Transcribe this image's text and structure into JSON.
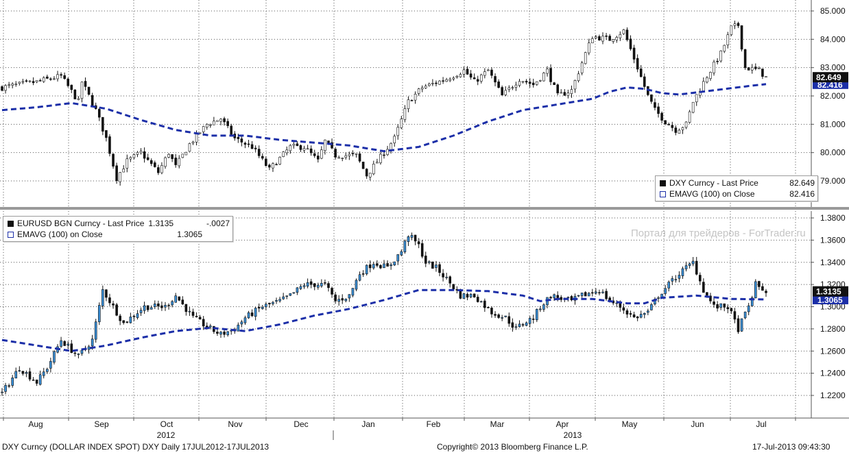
{
  "watermark": "Портал для трейдеров - ForTrader.ru",
  "footer": {
    "left": "DXY Curncy (DOLLAR INDEX SPOT) DXY  Daily 17JUL2012-17JUL2013",
    "center": "Copyright© 2013 Bloomberg Finance L.P.",
    "right": "17-Jul-2013 09:43:30"
  },
  "x_axis": {
    "months": [
      "Aug",
      "Sep",
      "Oct",
      "Nov",
      "Dec",
      "Jan",
      "Feb",
      "Mar",
      "Apr",
      "May",
      "Jun",
      "Jul"
    ],
    "years": [
      "2012",
      "2013"
    ]
  },
  "colors": {
    "candle_up": "#3a8fd6",
    "candle_down": "#111111",
    "ema": "#1c2fa8",
    "grid": "#555555",
    "divider": "#999999"
  },
  "chart_data": [
    {
      "type": "candlestick+line",
      "instrument": "DXY Curncy",
      "legend": [
        {
          "label": "DXY Curncy - Last Price",
          "value": "82.649",
          "marker": "square-black"
        },
        {
          "label": "EMAVG (100) on Close",
          "value": "82.416",
          "marker": "square-outline"
        }
      ],
      "last_price_tag": "82.649",
      "ema_tag": "82.416",
      "y_ticks": [
        "85.000",
        "84.000",
        "83.000",
        "82.000",
        "81.000",
        "80.000",
        "79.000"
      ],
      "ylim": [
        78.5,
        85.25
      ],
      "close_path": [
        [
          0,
          82.3
        ],
        [
          10,
          82.5
        ],
        [
          17,
          82.7
        ],
        [
          22,
          81.8
        ],
        [
          23,
          82.5
        ],
        [
          27,
          81.5
        ],
        [
          30,
          80.5
        ],
        [
          33,
          79.1
        ],
        [
          36,
          79.7
        ],
        [
          40,
          80.0
        ],
        [
          45,
          79.3
        ],
        [
          48,
          80.0
        ],
        [
          50,
          79.5
        ],
        [
          54,
          80.3
        ],
        [
          59,
          81.0
        ],
        [
          63,
          81.2
        ],
        [
          67,
          80.5
        ],
        [
          72,
          80.2
        ],
        [
          77,
          79.4
        ],
        [
          83,
          80.2
        ],
        [
          87,
          80.2
        ],
        [
          91,
          79.7
        ],
        [
          93,
          80.4
        ],
        [
          96,
          79.9
        ],
        [
          102,
          79.9
        ],
        [
          105,
          79.2
        ],
        [
          110,
          80.0
        ],
        [
          113,
          80.5
        ],
        [
          117,
          81.8
        ],
        [
          121,
          82.3
        ],
        [
          128,
          82.6
        ],
        [
          133,
          82.9
        ],
        [
          136,
          82.5
        ],
        [
          140,
          82.9
        ],
        [
          144,
          82.0
        ],
        [
          149,
          82.6
        ],
        [
          153,
          82.4
        ],
        [
          157,
          82.9
        ],
        [
          160,
          82.0
        ],
        [
          164,
          82.2
        ],
        [
          168,
          83.5
        ],
        [
          170,
          84.1
        ],
        [
          175,
          84.0
        ],
        [
          179,
          84.3
        ],
        [
          183,
          83.0
        ],
        [
          186,
          82.0
        ],
        [
          188,
          81.5
        ],
        [
          191,
          81.1
        ],
        [
          194,
          80.8
        ],
        [
          197,
          81.0
        ],
        [
          199,
          81.8
        ],
        [
          203,
          82.7
        ],
        [
          207,
          83.5
        ],
        [
          210,
          84.4
        ],
        [
          212,
          84.5
        ],
        [
          214,
          83.0
        ],
        [
          218,
          82.9
        ],
        [
          220,
          82.649
        ]
      ],
      "ema_path": [
        [
          0,
          81.5
        ],
        [
          10,
          81.6
        ],
        [
          20,
          81.75
        ],
        [
          30,
          81.55
        ],
        [
          40,
          81.15
        ],
        [
          50,
          80.8
        ],
        [
          60,
          80.6
        ],
        [
          70,
          80.6
        ],
        [
          80,
          80.45
        ],
        [
          90,
          80.35
        ],
        [
          100,
          80.25
        ],
        [
          110,
          80.05
        ],
        [
          120,
          80.2
        ],
        [
          130,
          80.6
        ],
        [
          140,
          81.1
        ],
        [
          150,
          81.5
        ],
        [
          160,
          81.7
        ],
        [
          170,
          81.9
        ],
        [
          175,
          82.15
        ],
        [
          180,
          82.3
        ],
        [
          185,
          82.25
        ],
        [
          190,
          82.1
        ],
        [
          195,
          82.05
        ],
        [
          205,
          82.2
        ],
        [
          215,
          82.35
        ],
        [
          220,
          82.416
        ]
      ]
    },
    {
      "type": "candlestick+line",
      "instrument": "EURUSD BGN Curncy",
      "legend": [
        {
          "label": "EURUSD BGN Curncy - Last Price",
          "value": "1.3135",
          "change": "-.0027",
          "marker": "square-black"
        },
        {
          "label": "EMAVG (100) on Close",
          "value": "1.3065",
          "marker": "square-outline"
        }
      ],
      "last_price_tag": "1.3135",
      "ema_tag": "1.3065",
      "y_ticks": [
        "1.3800",
        "1.3600",
        "1.3400",
        "1.3200",
        "1.3000",
        "1.2800",
        "1.2600",
        "1.2400",
        "1.2200"
      ],
      "ylim": [
        1.2,
        1.39
      ],
      "close_path": [
        [
          0,
          1.222
        ],
        [
          5,
          1.245
        ],
        [
          10,
          1.232
        ],
        [
          13,
          1.245
        ],
        [
          17,
          1.27
        ],
        [
          22,
          1.255
        ],
        [
          26,
          1.27
        ],
        [
          29,
          1.315
        ],
        [
          35,
          1.285
        ],
        [
          41,
          1.3
        ],
        [
          47,
          1.3
        ],
        [
          50,
          1.31
        ],
        [
          55,
          1.29
        ],
        [
          60,
          1.28
        ],
        [
          63,
          1.275
        ],
        [
          67,
          1.28
        ],
        [
          70,
          1.29
        ],
        [
          75,
          1.3
        ],
        [
          80,
          1.305
        ],
        [
          83,
          1.31
        ],
        [
          87,
          1.32
        ],
        [
          93,
          1.32
        ],
        [
          96,
          1.305
        ],
        [
          100,
          1.31
        ],
        [
          103,
          1.33
        ],
        [
          107,
          1.34
        ],
        [
          111,
          1.335
        ],
        [
          115,
          1.35
        ],
        [
          117,
          1.365
        ],
        [
          120,
          1.355
        ],
        [
          122,
          1.34
        ],
        [
          125,
          1.335
        ],
        [
          128,
          1.325
        ],
        [
          132,
          1.31
        ],
        [
          136,
          1.31
        ],
        [
          141,
          1.295
        ],
        [
          145,
          1.29
        ],
        [
          148,
          1.28
        ],
        [
          150,
          1.285
        ],
        [
          153,
          1.29
        ],
        [
          155,
          1.3
        ],
        [
          158,
          1.31
        ],
        [
          164,
          1.305
        ],
        [
          167,
          1.31
        ],
        [
          172,
          1.315
        ],
        [
          175,
          1.305
        ],
        [
          178,
          1.3
        ],
        [
          182,
          1.29
        ],
        [
          186,
          1.295
        ],
        [
          189,
          1.31
        ],
        [
          192,
          1.32
        ],
        [
          195,
          1.33
        ],
        [
          199,
          1.34
        ],
        [
          202,
          1.315
        ],
        [
          205,
          1.3
        ],
        [
          209,
          1.3
        ],
        [
          212,
          1.28
        ],
        [
          215,
          1.3
        ],
        [
          217,
          1.32
        ],
        [
          220,
          1.3135
        ]
      ],
      "ema_path": [
        [
          0,
          1.27
        ],
        [
          10,
          1.265
        ],
        [
          20,
          1.26
        ],
        [
          30,
          1.265
        ],
        [
          40,
          1.272
        ],
        [
          50,
          1.278
        ],
        [
          60,
          1.281
        ],
        [
          70,
          1.278
        ],
        [
          80,
          1.284
        ],
        [
          90,
          1.292
        ],
        [
          100,
          1.298
        ],
        [
          110,
          1.306
        ],
        [
          120,
          1.315
        ],
        [
          130,
          1.315
        ],
        [
          140,
          1.314
        ],
        [
          150,
          1.31
        ],
        [
          155,
          1.305
        ],
        [
          160,
          1.307
        ],
        [
          170,
          1.307
        ],
        [
          180,
          1.303
        ],
        [
          185,
          1.303
        ],
        [
          190,
          1.308
        ],
        [
          200,
          1.31
        ],
        [
          210,
          1.307
        ],
        [
          220,
          1.3065
        ]
      ]
    }
  ]
}
